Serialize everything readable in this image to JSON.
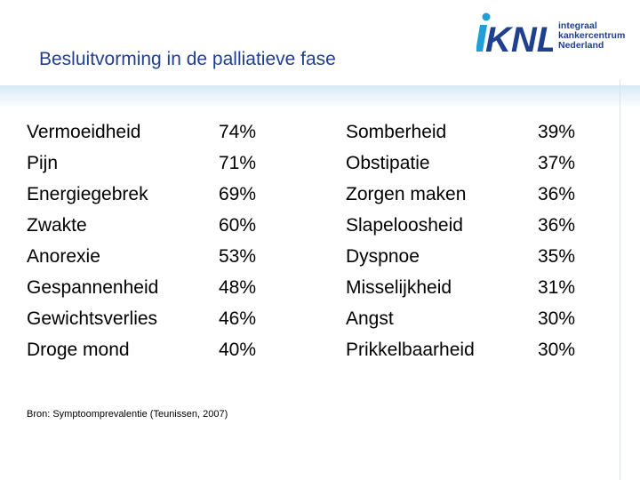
{
  "slide": {
    "title": "Besluitvorming in de palliatieve fase",
    "source": "Bron: Symptoomprevalentie (Teunissen, 2007)"
  },
  "logo": {
    "brand": "KNL",
    "line1": "integraal",
    "line2": "kankercentrum",
    "line3": "Nederland",
    "color": "#1f3f8f",
    "accent": "#1f9fd9"
  },
  "left_list": [
    {
      "symptom": "Vermoeidheid",
      "percent": "74%"
    },
    {
      "symptom": "Pijn",
      "percent": "71%"
    },
    {
      "symptom": "Energiegebrek",
      "percent": "69%"
    },
    {
      "symptom": "Zwakte",
      "percent": "60%"
    },
    {
      "symptom": "Anorexie",
      "percent": "53%"
    },
    {
      "symptom": "Gespannenheid",
      "percent": "48%"
    },
    {
      "symptom": "Gewichtsverlies",
      "percent": "46%"
    },
    {
      "symptom": "Droge mond",
      "percent": "40%"
    }
  ],
  "right_list": [
    {
      "symptom": "Somberheid",
      "percent": "39%"
    },
    {
      "symptom": "Obstipatie",
      "percent": "37%"
    },
    {
      "symptom": "Zorgen maken",
      "percent": "36%"
    },
    {
      "symptom": "Slapeloosheid",
      "percent": "36%"
    },
    {
      "symptom": "Dyspnoe",
      "percent": "35%"
    },
    {
      "symptom": "Misselijkheid",
      "percent": "31%"
    },
    {
      "symptom": "Angst",
      "percent": "30%"
    },
    {
      "symptom": "Prikkelbaarheid",
      "percent": "30%"
    }
  ]
}
